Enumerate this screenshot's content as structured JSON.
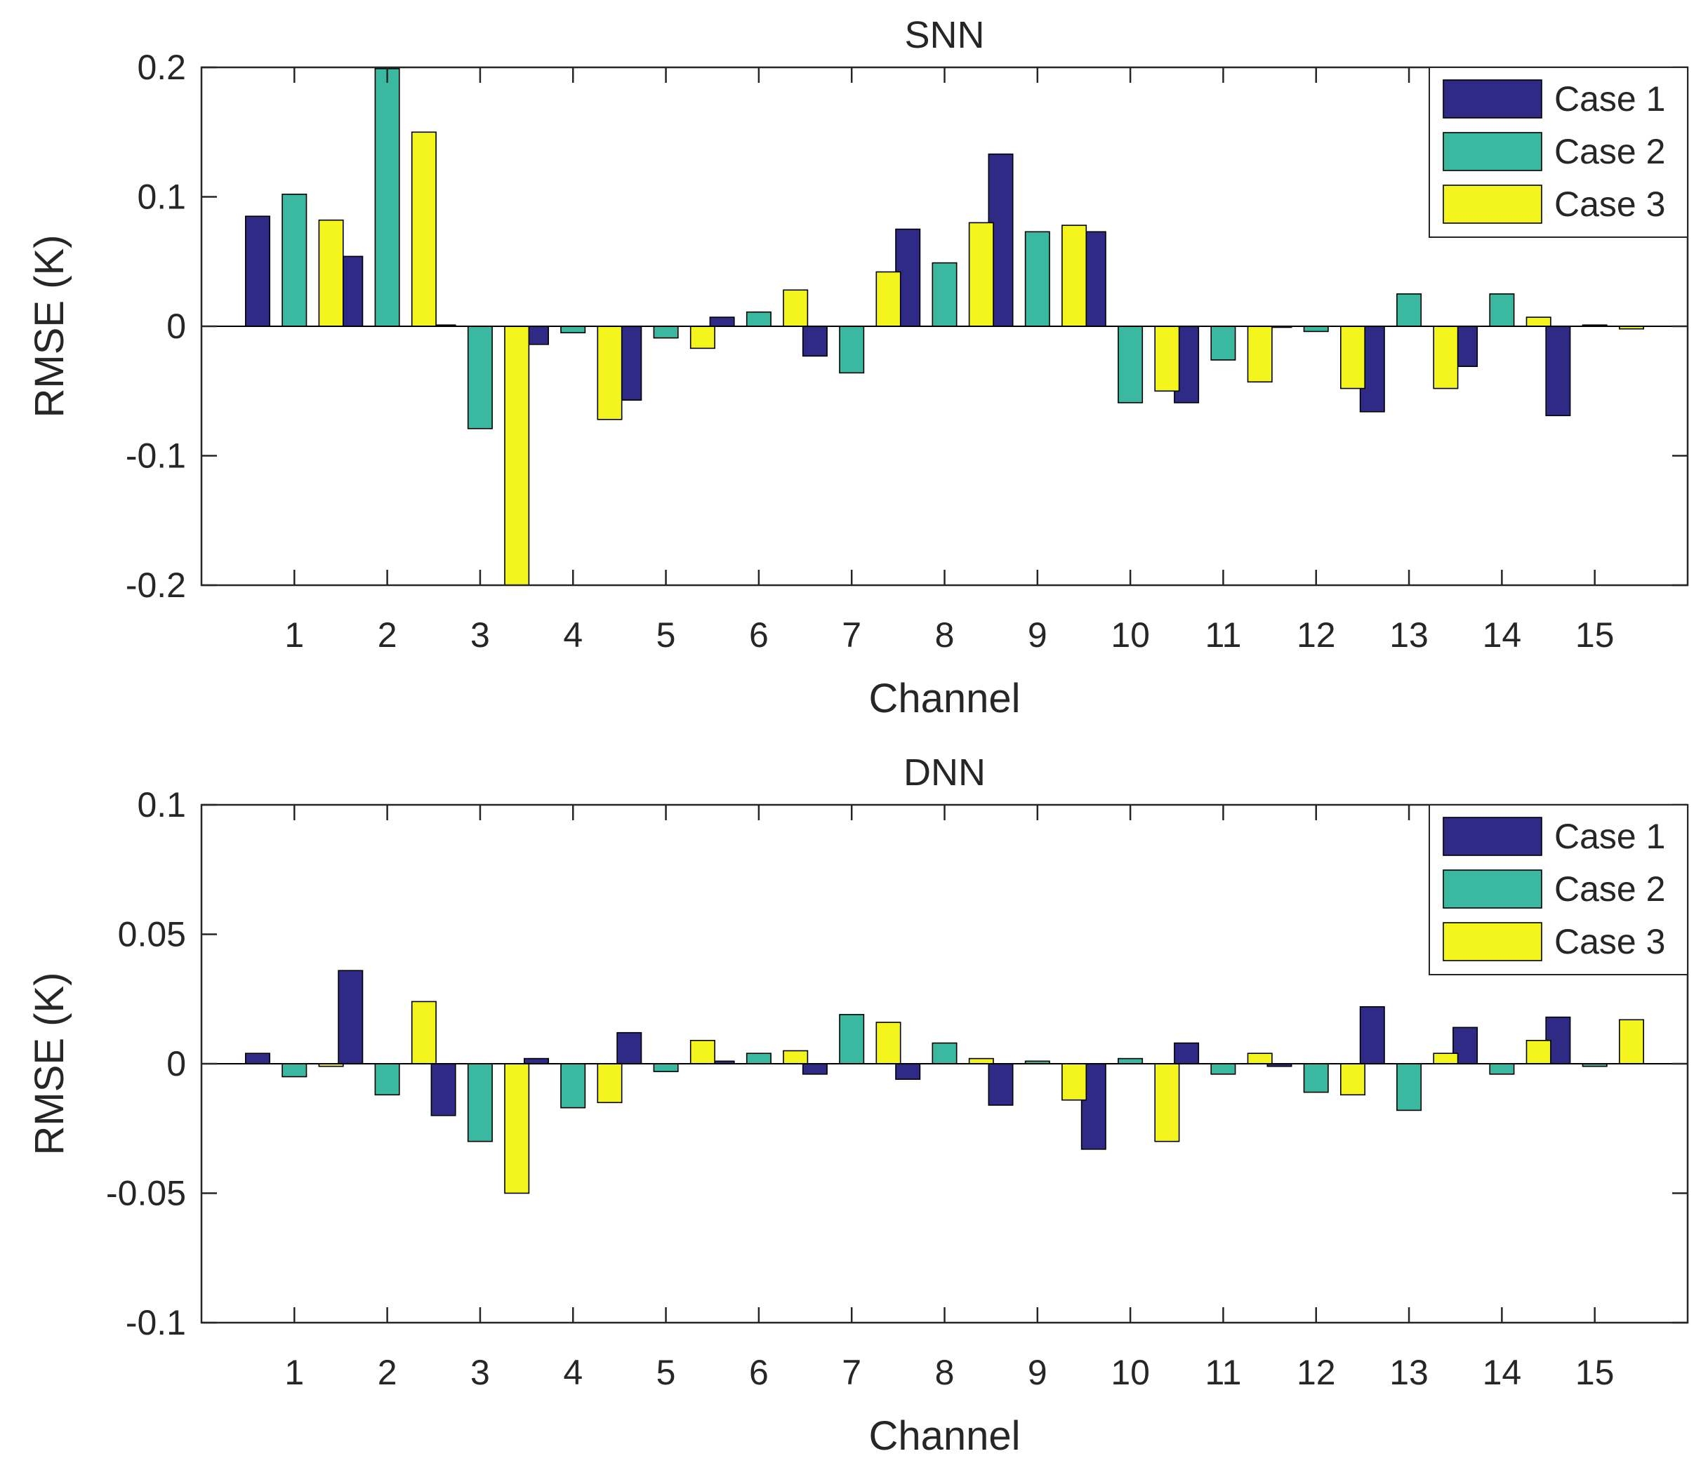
{
  "chart_data": [
    {
      "type": "bar",
      "title": "SNN",
      "xlabel": "Channel",
      "ylabel": "RMSE (K)",
      "ylim": [
        -0.2,
        0.2
      ],
      "yticks": [
        0.2,
        0.1,
        0,
        -0.1,
        -0.2
      ],
      "ytick_labels": [
        "0.2",
        "0.1",
        "0",
        "-0.1",
        "-0.2"
      ],
      "categories": [
        "1",
        "2",
        "3",
        "4",
        "5",
        "6",
        "7",
        "8",
        "9",
        "10",
        "11",
        "12",
        "13",
        "14",
        "15"
      ],
      "legend_position": "top-right",
      "grid": false,
      "series": [
        {
          "name": "Case 1",
          "color": "#2e2a86",
          "values": [
            0.085,
            0.054,
            0.001,
            -0.014,
            -0.057,
            0.007,
            -0.023,
            0.075,
            0.133,
            0.073,
            -0.059,
            0.0,
            -0.066,
            -0.031,
            -0.069
          ]
        },
        {
          "name": "Case 2",
          "color": "#3bb8a0",
          "values": [
            0.102,
            0.199,
            -0.079,
            -0.005,
            -0.009,
            0.011,
            -0.036,
            0.049,
            0.073,
            -0.059,
            -0.026,
            -0.004,
            0.025,
            0.025,
            0.001
          ]
        },
        {
          "name": "Case 3",
          "color": "#f5f51e",
          "values": [
            0.082,
            0.15,
            -0.2,
            -0.072,
            -0.017,
            0.028,
            0.042,
            0.08,
            0.078,
            -0.05,
            -0.043,
            -0.048,
            -0.048,
            0.007,
            -0.002
          ]
        }
      ]
    },
    {
      "type": "bar",
      "title": "DNN",
      "xlabel": "Channel",
      "ylabel": "RMSE (K)",
      "ylim": [
        -0.1,
        0.1
      ],
      "yticks": [
        0.1,
        0.05,
        0,
        -0.05,
        -0.1
      ],
      "ytick_labels": [
        "0.1",
        "0.05",
        "0",
        "-0.05",
        "-0.1"
      ],
      "categories": [
        "1",
        "2",
        "3",
        "4",
        "5",
        "6",
        "7",
        "8",
        "9",
        "10",
        "11",
        "12",
        "13",
        "14",
        "15"
      ],
      "legend_position": "top-right",
      "grid": false,
      "series": [
        {
          "name": "Case 1",
          "color": "#2e2a86",
          "values": [
            0.004,
            0.036,
            -0.02,
            0.002,
            0.012,
            0.001,
            -0.004,
            -0.006,
            -0.016,
            -0.033,
            0.008,
            -0.001,
            0.022,
            0.014,
            0.018
          ]
        },
        {
          "name": "Case 2",
          "color": "#3bb8a0",
          "values": [
            -0.005,
            -0.012,
            -0.03,
            -0.017,
            -0.003,
            0.004,
            0.019,
            0.008,
            0.001,
            0.002,
            -0.004,
            -0.011,
            -0.018,
            -0.004,
            -0.001
          ]
        },
        {
          "name": "Case 3",
          "color": "#f5f51e",
          "values": [
            -0.001,
            0.024,
            -0.05,
            -0.015,
            0.009,
            0.005,
            0.016,
            0.002,
            -0.014,
            -0.03,
            0.004,
            -0.012,
            0.004,
            0.009,
            0.017
          ]
        }
      ]
    }
  ]
}
